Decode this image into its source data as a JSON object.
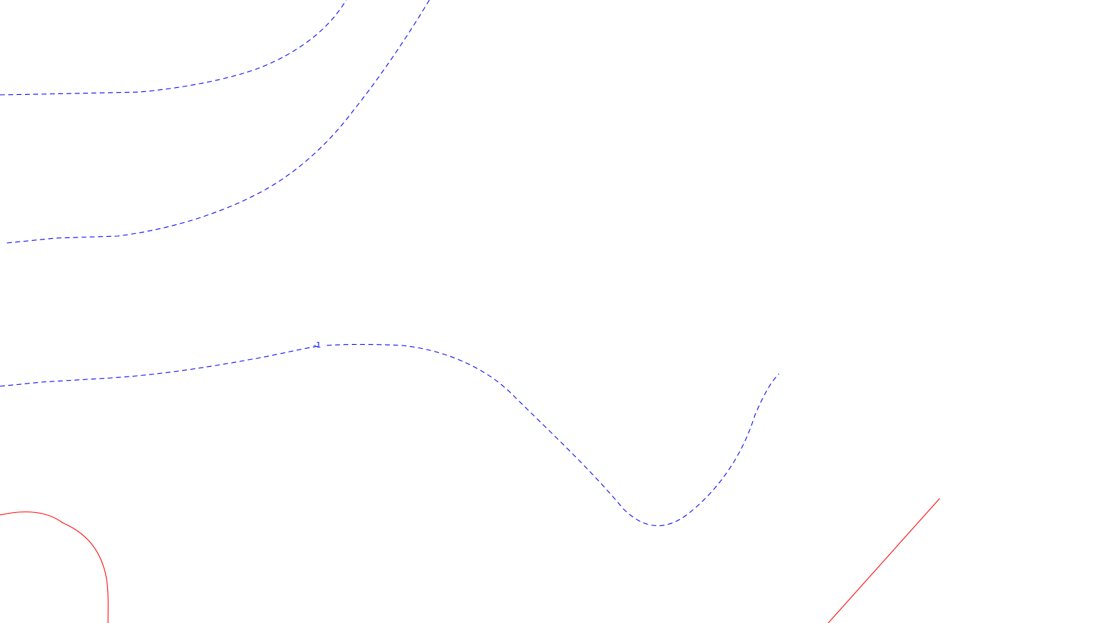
{
  "colors": {
    "background": "#ffffff",
    "negative_contour": "#0000ff",
    "positive_contour": "#ff0000"
  },
  "contours": {
    "label_1": "-1"
  }
}
